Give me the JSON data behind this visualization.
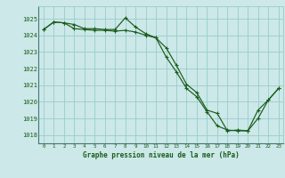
{
  "background_color": "#cce8e8",
  "plot_bg_color": "#cce8e8",
  "grid_color": "#99cccc",
  "line_color": "#1a5c1a",
  "title": "Graphe pression niveau de la mer (hPa)",
  "ylim": [
    1017.5,
    1025.75
  ],
  "xlim": [
    -0.5,
    23.5
  ],
  "yticks": [
    1018,
    1019,
    1020,
    1021,
    1022,
    1023,
    1024,
    1025
  ],
  "xticks": [
    0,
    1,
    2,
    3,
    4,
    5,
    6,
    7,
    8,
    9,
    10,
    11,
    12,
    13,
    14,
    15,
    16,
    17,
    18,
    19,
    20,
    21,
    22,
    23
  ],
  "series1_x": [
    0,
    1,
    2,
    3,
    4,
    5,
    6,
    7,
    8,
    9,
    10,
    11,
    12,
    13,
    14,
    15,
    16,
    17,
    18,
    19,
    20,
    21,
    22,
    23
  ],
  "series1_y": [
    1024.35,
    1024.8,
    1024.75,
    1024.65,
    1024.4,
    1024.4,
    1024.35,
    1024.35,
    1025.05,
    1024.5,
    1024.1,
    1023.85,
    1023.25,
    1022.2,
    1021.05,
    1020.55,
    1019.5,
    1019.3,
    1018.25,
    1018.3,
    1018.25,
    1019.5,
    1020.1,
    1020.8
  ],
  "series2_x": [
    0,
    1,
    2,
    3,
    4,
    5,
    6,
    7,
    8,
    9,
    10,
    11,
    12,
    13,
    14,
    15,
    16,
    17,
    18,
    19,
    20,
    21,
    22,
    23
  ],
  "series2_y": [
    1024.35,
    1024.8,
    1024.75,
    1024.4,
    1024.35,
    1024.3,
    1024.3,
    1024.25,
    1024.3,
    1024.2,
    1024.0,
    1023.85,
    1022.7,
    1021.8,
    1020.8,
    1020.3,
    1019.4,
    1018.55,
    1018.3,
    1018.25,
    1018.25,
    1019.0,
    1020.1,
    1020.8
  ]
}
